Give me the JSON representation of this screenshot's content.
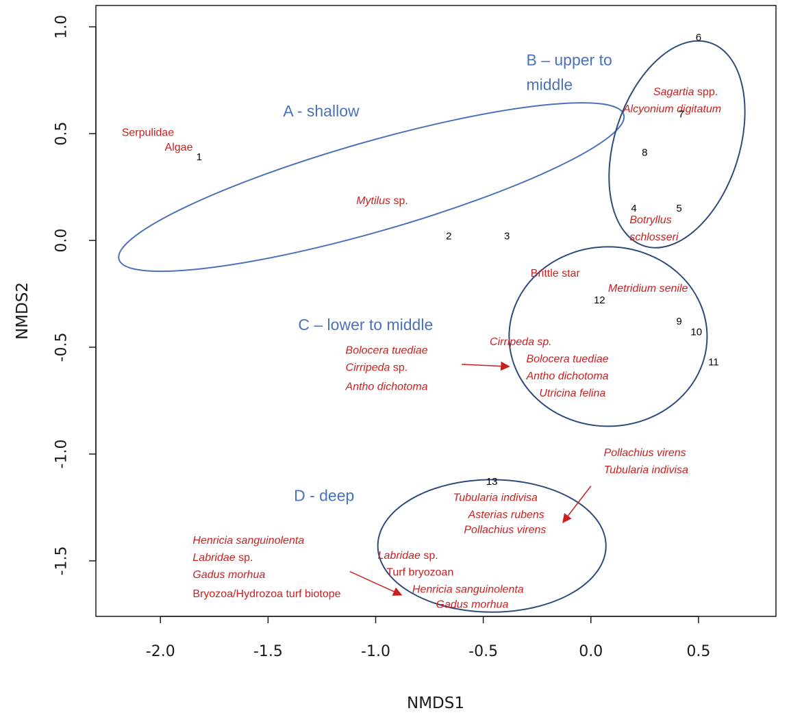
{
  "chart_data": {
    "type": "scatter",
    "xlabel": "NMDS1",
    "ylabel": "NMDS2",
    "xlim": [
      -2.3,
      0.86
    ],
    "ylim": [
      -1.76,
      1.1
    ],
    "x_ticks": [
      -2.0,
      -1.5,
      -1.0,
      -0.5,
      0.0,
      0.5
    ],
    "x_tick_labels": [
      "-2.0",
      "-1.5",
      "-1.0",
      "-0.5",
      "0.0",
      "0.5"
    ],
    "y_ticks": [
      -1.5,
      -1.0,
      -0.5,
      0.0,
      0.5,
      1.0
    ],
    "y_tick_labels": [
      "-1.5",
      "-1.0",
      "-0.5",
      "0.0",
      "0.5",
      "1.0"
    ],
    "grid": false,
    "colors": {
      "sites": "#000000",
      "species": "#cc1f1f",
      "groups": "#4a72b8",
      "ellipse_a": "#4a72b8",
      "ellipse_dark": "#2e4a7a"
    },
    "sites": [
      {
        "label": "1",
        "x": -1.82,
        "y": 0.39
      },
      {
        "label": "2",
        "x": -0.66,
        "y": 0.02
      },
      {
        "label": "3",
        "x": -0.39,
        "y": 0.02
      },
      {
        "label": "4",
        "x": 0.2,
        "y": 0.15
      },
      {
        "label": "5",
        "x": 0.41,
        "y": 0.15
      },
      {
        "label": "6",
        "x": 0.5,
        "y": 0.95
      },
      {
        "label": "7",
        "x": 0.42,
        "y": 0.59
      },
      {
        "label": "8",
        "x": 0.25,
        "y": 0.41
      },
      {
        "label": "9",
        "x": 0.41,
        "y": -0.38
      },
      {
        "label": "10",
        "x": 0.49,
        "y": -0.43
      },
      {
        "label": "11",
        "x": 0.57,
        "y": -0.57
      },
      {
        "label": "12",
        "x": 0.04,
        "y": -0.28
      },
      {
        "label": "13",
        "x": -0.46,
        "y": -1.13
      }
    ],
    "groups": [
      {
        "lines": [
          "A - shallow"
        ],
        "x": -1.43,
        "y": 0.58,
        "ellipse": {
          "cx": -1.02,
          "cy": 0.25,
          "rx": 1.22,
          "ry": 0.21,
          "angle": -16
        }
      },
      {
        "lines": [
          "B – upper to",
          "middle"
        ],
        "x": -0.3,
        "y": 0.82,
        "ellipse": {
          "cx": 0.4,
          "cy": 0.45,
          "rx": 0.29,
          "ry": 0.5,
          "angle": 18
        }
      },
      {
        "lines": [
          "C – lower to middle"
        ],
        "x": -1.36,
        "y": -0.42,
        "ellipse": {
          "cx": 0.08,
          "cy": -0.45,
          "rx": 0.46,
          "ry": 0.42,
          "angle": 0
        }
      },
      {
        "lines": [
          "D - deep"
        ],
        "x": -1.38,
        "y": -1.22,
        "ellipse": {
          "cx": -0.46,
          "cy": -1.43,
          "rx": 0.53,
          "ry": 0.31,
          "angle": 0
        }
      }
    ],
    "species": [
      {
        "x": -2.18,
        "y": 0.49,
        "italic": false,
        "text": "Serpulidae"
      },
      {
        "x": -1.98,
        "y": 0.42,
        "italic": false,
        "text": "Algae"
      },
      {
        "x": -1.09,
        "y": 0.17,
        "parts": [
          [
            "Mytilus",
            true
          ],
          [
            " sp.",
            false
          ]
        ]
      },
      {
        "x": 0.29,
        "y": 0.68,
        "parts": [
          [
            "Sagartia",
            true
          ],
          [
            " spp.",
            false
          ]
        ]
      },
      {
        "x": 0.15,
        "y": 0.6,
        "italic": true,
        "text": "Alcyonium digitatum"
      },
      {
        "x": 0.18,
        "y": 0.08,
        "italic": true,
        "text": "Botryllus"
      },
      {
        "x": 0.18,
        "y": 0.0,
        "italic": true,
        "text": "schlosseri"
      },
      {
        "x": -0.28,
        "y": -0.17,
        "italic": false,
        "text": "Brittle star"
      },
      {
        "x": 0.08,
        "y": -0.24,
        "italic": true,
        "text": "Metridium senile"
      },
      {
        "x": -0.47,
        "y": -0.49,
        "italic": true,
        "text": "Cirripeda sp."
      },
      {
        "x": -0.3,
        "y": -0.57,
        "italic": true,
        "text": "Bolocera tuediae"
      },
      {
        "x": -0.3,
        "y": -0.65,
        "italic": true,
        "text": "Antho dichotoma"
      },
      {
        "x": -0.24,
        "y": -0.73,
        "italic": true,
        "text": "Utricina felina"
      },
      {
        "x": -1.14,
        "y": -0.53,
        "italic": true,
        "text": "Bolocera tuediae"
      },
      {
        "x": -1.14,
        "y": -0.61,
        "parts": [
          [
            "Cirripeda",
            true
          ],
          [
            " sp.",
            false
          ]
        ]
      },
      {
        "x": -1.14,
        "y": -0.7,
        "italic": true,
        "text": "Antho dichotoma"
      },
      {
        "x": 0.06,
        "y": -1.01,
        "italic": true,
        "text": "Pollachius virens"
      },
      {
        "x": 0.06,
        "y": -1.09,
        "italic": true,
        "text": "Tubularia indivisa"
      },
      {
        "x": -0.64,
        "y": -1.22,
        "italic": true,
        "text": "Tubularia indivisa"
      },
      {
        "x": -0.57,
        "y": -1.3,
        "italic": true,
        "text": "Asterias rubens"
      },
      {
        "x": -0.59,
        "y": -1.37,
        "italic": true,
        "text": "Pollachius virens"
      },
      {
        "x": -1.85,
        "y": -1.42,
        "italic": true,
        "text": "Henricia sanguinolenta"
      },
      {
        "x": -1.85,
        "y": -1.5,
        "parts": [
          [
            "Labridae",
            true
          ],
          [
            " sp.",
            false
          ]
        ]
      },
      {
        "x": -1.85,
        "y": -1.58,
        "italic": true,
        "text": "Gadus morhua"
      },
      {
        "x": -1.85,
        "y": -1.67,
        "italic": false,
        "text": "Bryozoa/Hydrozoa turf biotope"
      },
      {
        "x": -0.99,
        "y": -1.49,
        "parts": [
          [
            "Labridae",
            true
          ],
          [
            " sp.",
            false
          ]
        ]
      },
      {
        "x": -0.95,
        "y": -1.57,
        "italic": false,
        "text": "Turf bryozoan"
      },
      {
        "x": -0.83,
        "y": -1.65,
        "italic": true,
        "text": "Henricia sanguinolenta"
      },
      {
        "x": -0.72,
        "y": -1.72,
        "italic": true,
        "text": "Gadus morhua"
      }
    ],
    "arrows": [
      {
        "from": [
          -0.6,
          -0.58
        ],
        "to": [
          -0.38,
          -0.59
        ]
      },
      {
        "from": [
          -0.0,
          -1.15
        ],
        "to": [
          -0.13,
          -1.32
        ]
      },
      {
        "from": [
          -1.12,
          -1.55
        ],
        "to": [
          -0.88,
          -1.66
        ]
      }
    ]
  }
}
